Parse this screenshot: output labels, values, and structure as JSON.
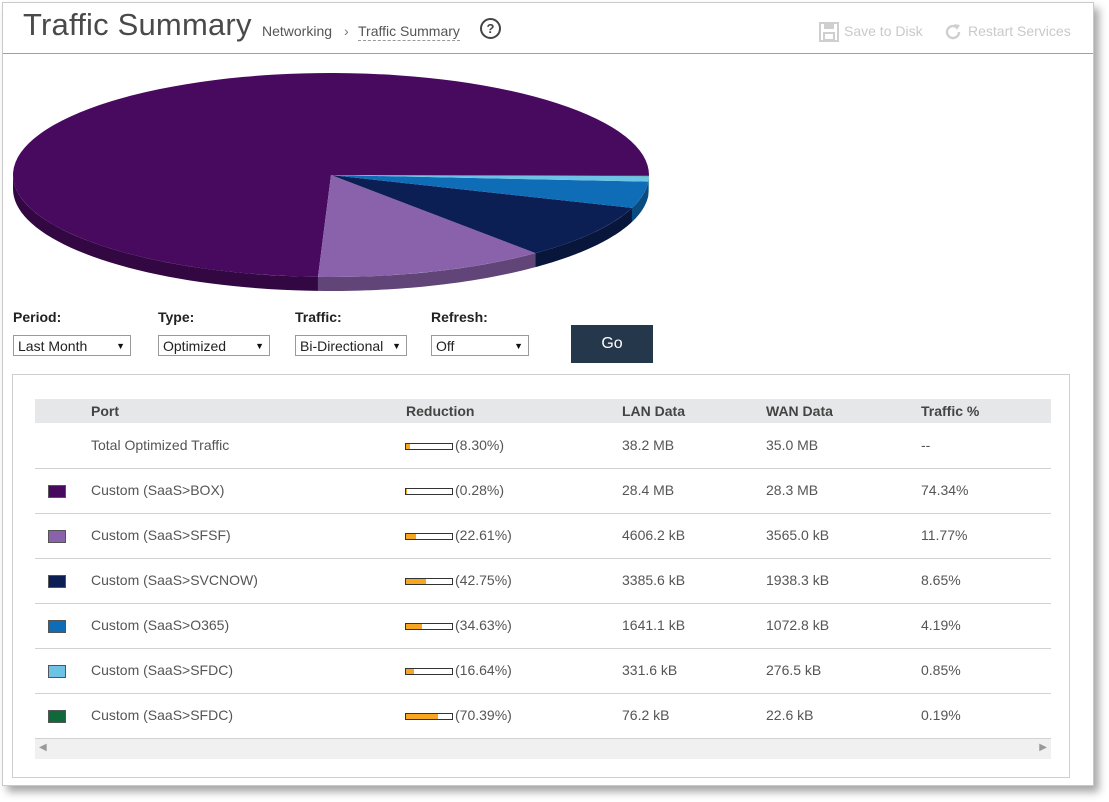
{
  "header": {
    "title": "Traffic Summary",
    "breadcrumb": [
      "Networking",
      "Traffic Summary"
    ],
    "breadcrumb_sep": "›",
    "help": "?",
    "save_label": "Save to Disk",
    "restart_label": "Restart Services"
  },
  "pie_chart": {
    "chart_data": {
      "type": "pie",
      "slices": [
        {
          "label": "Custom (SaaS>BOX)",
          "value": 74.34,
          "color": "#480a5e"
        },
        {
          "label": "Custom (SaaS>SFSF)",
          "value": 11.77,
          "color": "#8a62ac"
        },
        {
          "label": "Custom (SaaS>SVCNOW)",
          "value": 8.65,
          "color": "#0c1f55"
        },
        {
          "label": "Custom (SaaS>O365)",
          "value": 4.19,
          "color": "#0f6cb7"
        },
        {
          "label": "Custom (SaaS>SFDC)",
          "value": 0.85,
          "color": "#6cc3e6"
        },
        {
          "label": "Custom (SaaS>SFDC)",
          "value": 0.19,
          "color": "#10693a"
        }
      ]
    }
  },
  "controls": {
    "period_label": "Period:",
    "period_value": "Last Month",
    "type_label": "Type:",
    "type_value": "Optimized",
    "traffic_label": "Traffic:",
    "traffic_value": "Bi-Directional",
    "refresh_label": "Refresh:",
    "refresh_value": "Off",
    "go_label": "Go"
  },
  "table": {
    "columns": [
      "Port",
      "Reduction",
      "LAN Data",
      "WAN Data",
      "Traffic %"
    ],
    "rows": [
      {
        "port": "Total Optimized Traffic",
        "reduction_text": "(8.30%)",
        "reduction": 8.3,
        "lan": "38.2 MB",
        "wan": "35.0 MB",
        "traffic": "--",
        "color": ""
      },
      {
        "port": "Custom (SaaS>BOX)",
        "reduction_text": "(0.28%)",
        "reduction": 0.28,
        "lan": "28.4 MB",
        "wan": "28.3 MB",
        "traffic": "74.34%",
        "color": "#480a5e"
      },
      {
        "port": "Custom (SaaS>SFSF)",
        "reduction_text": "(22.61%)",
        "reduction": 22.61,
        "lan": "4606.2 kB",
        "wan": "3565.0 kB",
        "traffic": "11.77%",
        "color": "#8a62ac"
      },
      {
        "port": "Custom (SaaS>SVCNOW)",
        "reduction_text": "(42.75%)",
        "reduction": 42.75,
        "lan": "3385.6 kB",
        "wan": "1938.3 kB",
        "traffic": "8.65%",
        "color": "#0c1f55"
      },
      {
        "port": "Custom (SaaS>O365)",
        "reduction_text": "(34.63%)",
        "reduction": 34.63,
        "lan": "1641.1 kB",
        "wan": "1072.8 kB",
        "traffic": "4.19%",
        "color": "#0f6cb7"
      },
      {
        "port": "Custom (SaaS>SFDC)",
        "reduction_text": "(16.64%)",
        "reduction": 16.64,
        "lan": "331.6 kB",
        "wan": "276.5 kB",
        "traffic": "0.85%",
        "color": "#6cc3e6"
      },
      {
        "port": "Custom (SaaS>SFDC)",
        "reduction_text": "(70.39%)",
        "reduction": 70.39,
        "lan": "76.2 kB",
        "wan": "22.6 kB",
        "traffic": "0.19%",
        "color": "#10693a"
      }
    ]
  }
}
